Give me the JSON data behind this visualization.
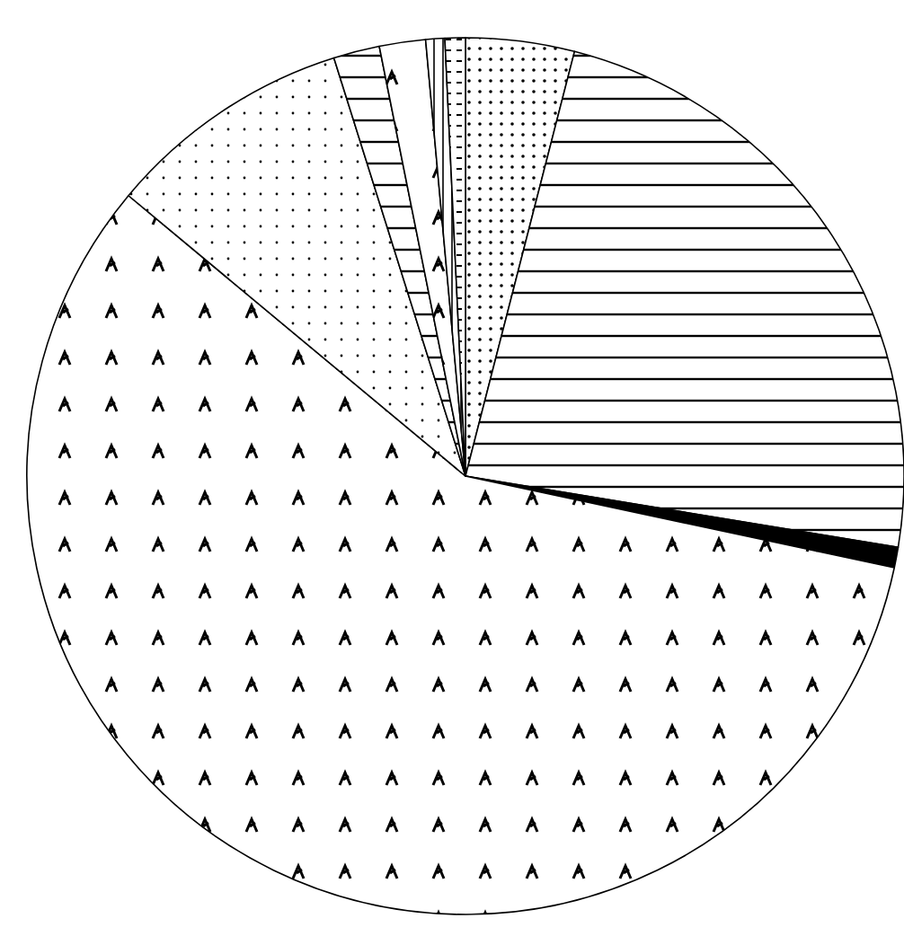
{
  "chart_data": {
    "type": "pie",
    "categories": [
      null,
      null,
      null,
      null,
      null,
      null,
      null,
      null,
      null
    ],
    "values": [
      4.0,
      23.6,
      0.75,
      57.7,
      9.1,
      1.7,
      1.7,
      0.7,
      0.75
    ],
    "colors": [
      "#ffffff",
      "#ffffff",
      "#000000",
      "#ffffff",
      "#ffffff",
      "#ffffff",
      "#ffffff",
      "#ffffff",
      "#ffffff"
    ]
  }
}
